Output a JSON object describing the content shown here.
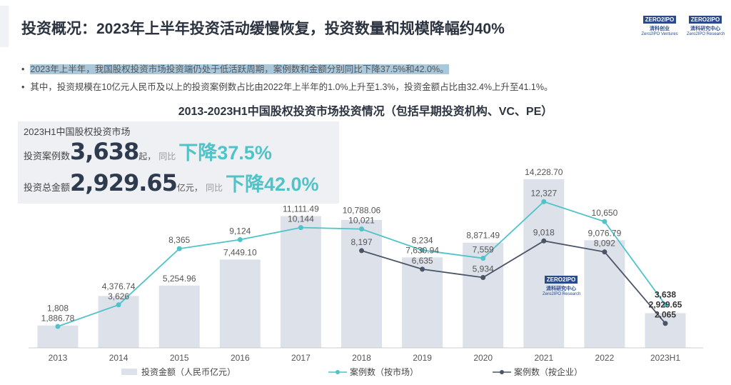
{
  "title": "投资概况：2023年上半年投资活动缓慢恢复，投资数量和规模降幅约40%",
  "logos": [
    {
      "mark": "ZERO2IPO",
      "cn": "清科创业",
      "en": "Zero2IPO Ventures"
    },
    {
      "mark": "ZERO2IPO",
      "cn": "清科研究中心",
      "en": "Zero2IPO Research"
    }
  ],
  "bullets": [
    "2023年上半年，我国股权投资市场投资端仍处于低活跃周期，案例数和金额分别同比下降37.5%和42.0%。",
    "其中，投资规模在10亿元人民币及以上的投资案例数占比由2022年上半年的1.0%上升至1.3%，投资金额占比由32.4%上升至41.1%。"
  ],
  "panel": {
    "heading": "2023H1中国股权投资市场",
    "row1": {
      "label": "投资案例数",
      "value": "3,638",
      "unit": "起，",
      "yoy": "同比",
      "change": "下降37.5%"
    },
    "row2": {
      "label": "投资总金额",
      "value": "2,929.65",
      "unit": "亿元，",
      "yoy": "同比",
      "change": "下降42.0%"
    }
  },
  "watermark": {
    "mark": "ZERO2IPO",
    "cn": "清科研究中心",
    "en": "Zero2IPO Research"
  },
  "chart_data": {
    "type": "bar+line",
    "title": "2013-2023H1中国股权投资市场投资情况（包括早期投资机构、VC、PE）",
    "categories": [
      "2013",
      "2014",
      "2015",
      "2016",
      "2017",
      "2018",
      "2019",
      "2020",
      "2021",
      "2022",
      "2023H1"
    ],
    "series": [
      {
        "name": "投资金额（人民币亿元）",
        "type": "bar",
        "color": "#dde1ea",
        "values": [
          1886.78,
          4376.74,
          5254.96,
          7449.1,
          11111.49,
          10788.06,
          7630.94,
          8871.49,
          14228.7,
          9076.79,
          2929.65
        ],
        "labels": [
          "1,886.78",
          "4,376.74",
          "5,254.96",
          "7,449.10",
          "11,111.49",
          "10,788.06",
          "7,630.94",
          "8,871.49",
          "14,228.70",
          "9,076.79",
          "2,929.65"
        ]
      },
      {
        "name": "案例数（按市场）",
        "type": "line",
        "color": "#4fc3c8",
        "values": [
          1808,
          3626,
          8365,
          9124,
          10144,
          10021,
          8234,
          7559,
          12327,
          10650,
          3638
        ],
        "labels": [
          "1,808",
          "3,626",
          "8,365",
          "9,124",
          "10,144",
          "10,021",
          "8,234",
          "7,559",
          "12,327",
          "10,650",
          "3,638"
        ]
      },
      {
        "name": "案例数（按企业）",
        "type": "line",
        "color": "#4a5568",
        "values": [
          null,
          null,
          null,
          null,
          null,
          8197,
          6635,
          5934,
          9018,
          8092,
          2065
        ],
        "labels": [
          "",
          "",
          "",
          "",
          "",
          "8,197",
          "6,635",
          "5,934",
          "9,018",
          "8,092",
          "2,065"
        ]
      }
    ],
    "legend": "bottom",
    "grid": false,
    "ylim": [
      0,
      16000
    ]
  }
}
